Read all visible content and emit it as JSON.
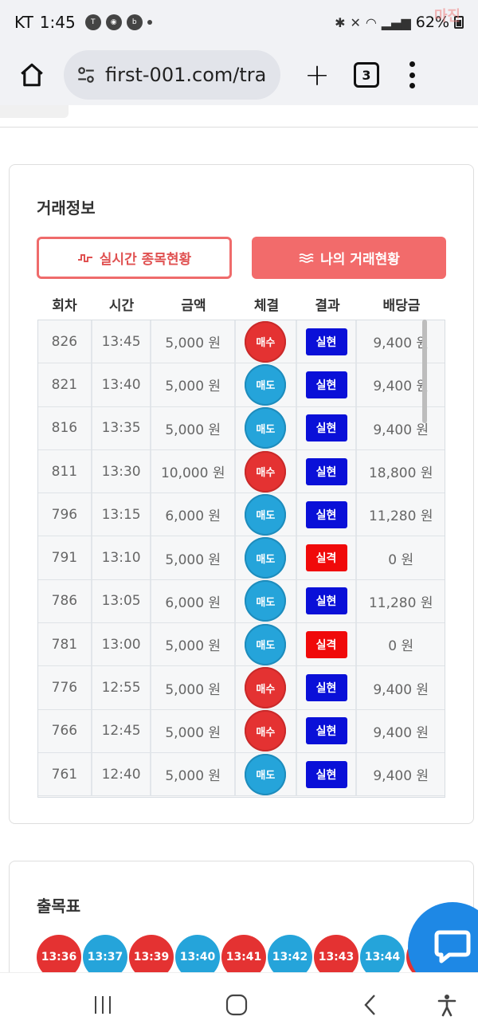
{
  "status_bar": {
    "carrier": "KT",
    "time": "1:45",
    "battery": "62%",
    "watermark": "마진"
  },
  "browser": {
    "url": "first-001.com/tra",
    "tab_count": "3",
    "home_icon": "home-icon",
    "tune_icon": "tune-icon",
    "plus_icon": "plus-icon",
    "menu_icon": "more-vert-icon"
  },
  "trade_info": {
    "title": "거래정보",
    "btn_live_label": "실시간 종목현황",
    "btn_mine_label": "나의 거래현황",
    "columns": [
      "회차",
      "시간",
      "금액",
      "체결",
      "결과",
      "배당금"
    ],
    "rows": [
      {
        "round": "826",
        "time": "13:45",
        "amount": "5,000 원",
        "trade": "매수",
        "trade_type": "buy",
        "result": "실현",
        "result_type": "win",
        "payout": "9,400 원"
      },
      {
        "round": "821",
        "time": "13:40",
        "amount": "5,000 원",
        "trade": "매도",
        "trade_type": "sell",
        "result": "실현",
        "result_type": "win",
        "payout": "9,400 원"
      },
      {
        "round": "816",
        "time": "13:35",
        "amount": "5,000 원",
        "trade": "매도",
        "trade_type": "sell",
        "result": "실현",
        "result_type": "win",
        "payout": "9,400 원"
      },
      {
        "round": "811",
        "time": "13:30",
        "amount": "10,000 원",
        "trade": "매수",
        "trade_type": "buy",
        "result": "실현",
        "result_type": "win",
        "payout": "18,800 원"
      },
      {
        "round": "796",
        "time": "13:15",
        "amount": "6,000 원",
        "trade": "매도",
        "trade_type": "sell",
        "result": "실현",
        "result_type": "win",
        "payout": "11,280 원"
      },
      {
        "round": "791",
        "time": "13:10",
        "amount": "5,000 원",
        "trade": "매도",
        "trade_type": "sell",
        "result": "실격",
        "result_type": "lose",
        "payout": "0 원"
      },
      {
        "round": "786",
        "time": "13:05",
        "amount": "6,000 원",
        "trade": "매도",
        "trade_type": "sell",
        "result": "실현",
        "result_type": "win",
        "payout": "11,280 원"
      },
      {
        "round": "781",
        "time": "13:00",
        "amount": "5,000 원",
        "trade": "매도",
        "trade_type": "sell",
        "result": "실격",
        "result_type": "lose",
        "payout": "0 원"
      },
      {
        "round": "776",
        "time": "12:55",
        "amount": "5,000 원",
        "trade": "매수",
        "trade_type": "buy",
        "result": "실현",
        "result_type": "win",
        "payout": "9,400 원"
      },
      {
        "round": "766",
        "time": "12:45",
        "amount": "5,000 원",
        "trade": "매수",
        "trade_type": "buy",
        "result": "실현",
        "result_type": "win",
        "payout": "9,400 원"
      },
      {
        "round": "761",
        "time": "12:40",
        "amount": "5,000 원",
        "trade": "매도",
        "trade_type": "sell",
        "result": "실현",
        "result_type": "win",
        "payout": "9,400 원"
      }
    ]
  },
  "results_board": {
    "title": "출목표",
    "items": [
      {
        "time": "13:36",
        "color": "red"
      },
      {
        "time": "13:37",
        "color": "blue"
      },
      {
        "time": "13:39",
        "color": "red"
      },
      {
        "time": "13:40",
        "color": "blue"
      },
      {
        "time": "13:41",
        "color": "red"
      },
      {
        "time": "13:42",
        "color": "blue"
      },
      {
        "time": "13:43",
        "color": "red"
      },
      {
        "time": "13:44",
        "color": "blue"
      },
      {
        "time": "",
        "color": "red"
      }
    ]
  },
  "colors": {
    "buy": "#e43232",
    "sell": "#25a4da",
    "win": "#0a10d8",
    "lose": "#f00a0a",
    "accent": "#f26b6b",
    "chat": "#1e88e5"
  },
  "nav": {
    "recent_icon": "recent-apps-icon",
    "home_icon": "home-circle-icon",
    "back_icon": "back-icon",
    "accessibility_icon": "accessibility-icon"
  }
}
